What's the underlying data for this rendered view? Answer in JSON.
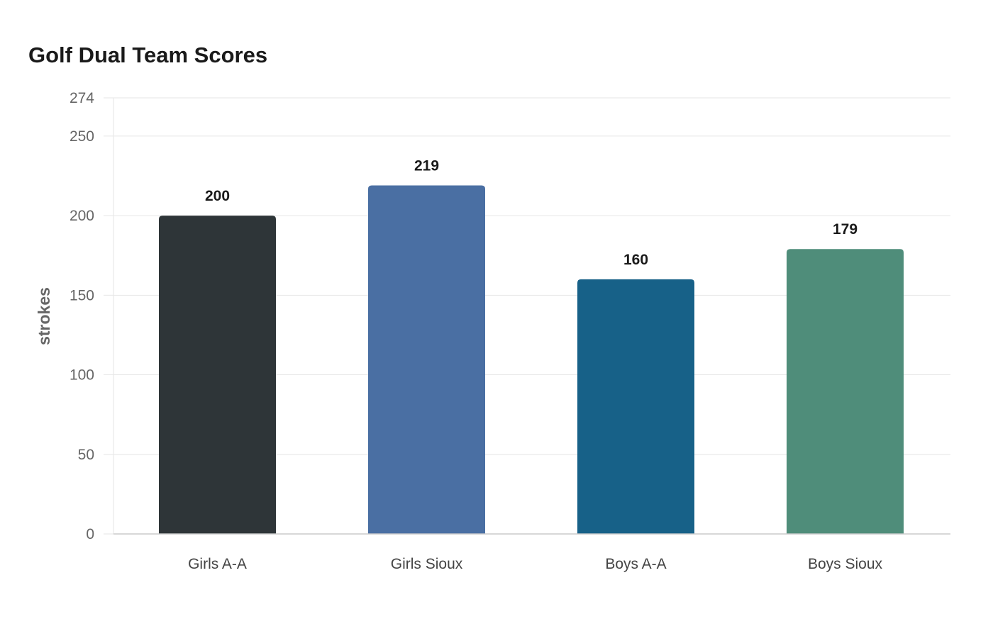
{
  "chart_data": {
    "type": "bar",
    "title": "Golf Dual Team Scores",
    "xlabel": "",
    "ylabel": "strokes",
    "categories": [
      "Girls A-A",
      "Girls Sioux",
      "Boys A-A",
      "Boys Sioux"
    ],
    "values": [
      200,
      219,
      160,
      179
    ],
    "colors": [
      "#2e3538",
      "#4a6fa3",
      "#176188",
      "#4f8d7a"
    ],
    "ylim": [
      0,
      274
    ],
    "yticks": [
      0,
      50,
      100,
      150,
      200,
      250,
      274
    ],
    "grid": true,
    "legend": "none"
  }
}
